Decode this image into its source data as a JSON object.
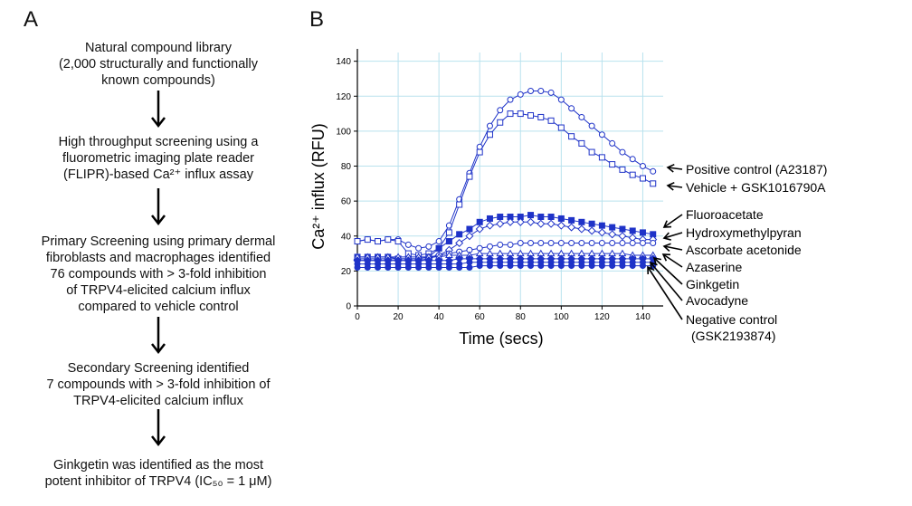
{
  "panel_a": {
    "label": "A",
    "steps": [
      {
        "lines": [
          "Natural compound library",
          "(2,000 structurally and functionally",
          "known compounds)"
        ]
      },
      {
        "lines": [
          "High throughput screening using a",
          "fluorometric imaging plate reader",
          "(FLIPR)-based Ca²⁺ influx assay"
        ]
      },
      {
        "lines": [
          "Primary Screening using primary dermal",
          "fibroblasts and macrophages identified",
          "76 compounds with > 3-fold inhibition",
          "of TRPV4-elicited calcium influx",
          "compared to vehicle control"
        ]
      },
      {
        "lines": [
          "Secondary Screening identified",
          "7 compounds with > 3-fold inhibition of",
          "TRPV4-elicited calcium influx"
        ]
      },
      {
        "lines": [
          "Ginkgetin was identified as the most",
          "potent inhibitor of TRPV4 (IC₅₀ = 1 μM)"
        ]
      }
    ]
  },
  "panel_b": {
    "label": "B"
  },
  "chart_data": {
    "type": "line",
    "xlabel": "Time (secs)",
    "ylabel": "Ca²⁺ influx (RFU)",
    "xlim": [
      0,
      150
    ],
    "ylim": [
      0,
      145
    ],
    "xticks": [
      0,
      20,
      40,
      60,
      80,
      100,
      120,
      140
    ],
    "yticks": [
      0,
      20,
      40,
      60,
      80,
      100,
      120,
      140
    ],
    "grid": true,
    "legend": "right-callouts",
    "color": "#1f33c8",
    "series": [
      {
        "name": "Positive control (A23187)",
        "marker": "open-circle",
        "x": [
          0,
          5,
          10,
          15,
          20,
          25,
          30,
          35,
          40,
          45,
          50,
          55,
          60,
          65,
          70,
          75,
          80,
          85,
          90,
          95,
          100,
          105,
          110,
          115,
          120,
          125,
          130,
          135,
          140,
          145
        ],
        "y": [
          37,
          38,
          37,
          38,
          38,
          35,
          33,
          34,
          37,
          46,
          61,
          76,
          91,
          103,
          112,
          118,
          121,
          123,
          123,
          122,
          118,
          113,
          108,
          103,
          98,
          93,
          88,
          84,
          80,
          77
        ]
      },
      {
        "name": "Vehicle + GSK1016790A",
        "marker": "open-square",
        "x": [
          0,
          5,
          10,
          15,
          20,
          25,
          30,
          35,
          40,
          45,
          50,
          55,
          60,
          65,
          70,
          75,
          80,
          85,
          90,
          95,
          100,
          105,
          110,
          115,
          120,
          125,
          130,
          135,
          140,
          145
        ],
        "y": [
          37,
          38,
          37,
          38,
          37,
          30,
          29,
          30,
          33,
          42,
          58,
          74,
          88,
          98,
          105,
          110,
          110,
          109,
          108,
          106,
          102,
          97,
          93,
          88,
          85,
          81,
          78,
          75,
          73,
          70
        ]
      },
      {
        "name": "Fluoroacetate",
        "marker": "filled-square",
        "x": [
          0,
          5,
          10,
          15,
          20,
          25,
          30,
          35,
          40,
          45,
          50,
          55,
          60,
          65,
          70,
          75,
          80,
          85,
          90,
          95,
          100,
          105,
          110,
          115,
          120,
          125,
          130,
          135,
          140,
          145
        ],
        "y": [
          28,
          28,
          28,
          28,
          27,
          27,
          27,
          28,
          33,
          37,
          41,
          44,
          48,
          50,
          51,
          51,
          51,
          52,
          51,
          51,
          50,
          49,
          48,
          47,
          46,
          45,
          44,
          43,
          42,
          41
        ]
      },
      {
        "name": "Hydroxymethylpyran",
        "marker": "open-diamond",
        "x": [
          0,
          5,
          10,
          15,
          20,
          25,
          30,
          35,
          40,
          45,
          50,
          55,
          60,
          65,
          70,
          75,
          80,
          85,
          90,
          95,
          100,
          105,
          110,
          115,
          120,
          125,
          130,
          135,
          140,
          145
        ],
        "y": [
          26,
          26,
          26,
          26,
          26,
          26,
          26,
          27,
          29,
          32,
          36,
          40,
          44,
          46,
          47,
          48,
          48,
          48,
          47,
          47,
          46,
          45,
          44,
          43,
          42,
          41,
          40,
          39,
          38,
          38
        ]
      },
      {
        "name": "Ascorbate acetonide",
        "marker": "open-circle",
        "x": [
          0,
          5,
          10,
          15,
          20,
          25,
          30,
          35,
          40,
          45,
          50,
          55,
          60,
          65,
          70,
          75,
          80,
          85,
          90,
          95,
          100,
          105,
          110,
          115,
          120,
          125,
          130,
          135,
          140,
          145
        ],
        "y": [
          27,
          27,
          27,
          27,
          27,
          27,
          27,
          28,
          29,
          30,
          31,
          32,
          33,
          34,
          35,
          35,
          36,
          36,
          36,
          36,
          36,
          36,
          36,
          36,
          36,
          36,
          36,
          36,
          36,
          36
        ]
      },
      {
        "name": "Azaserine",
        "marker": "open-triangle",
        "x": [
          0,
          5,
          10,
          15,
          20,
          25,
          30,
          35,
          40,
          45,
          50,
          55,
          60,
          65,
          70,
          75,
          80,
          85,
          90,
          95,
          100,
          105,
          110,
          115,
          120,
          125,
          130,
          135,
          140,
          145
        ],
        "y": [
          28,
          28,
          28,
          28,
          28,
          28,
          28,
          28,
          28,
          29,
          29,
          29,
          30,
          30,
          30,
          30,
          30,
          30,
          30,
          30,
          30,
          30,
          30,
          30,
          30,
          30,
          30,
          29,
          29,
          29
        ]
      },
      {
        "name": "Ginkgetin",
        "marker": "filled-diamond",
        "x": [
          0,
          5,
          10,
          15,
          20,
          25,
          30,
          35,
          40,
          45,
          50,
          55,
          60,
          65,
          70,
          75,
          80,
          85,
          90,
          95,
          100,
          105,
          110,
          115,
          120,
          125,
          130,
          135,
          140,
          145
        ],
        "y": [
          26,
          26,
          26,
          26,
          26,
          26,
          26,
          26,
          26,
          26,
          27,
          27,
          27,
          27,
          27,
          27,
          27,
          27,
          27,
          27,
          27,
          27,
          27,
          27,
          27,
          27,
          27,
          27,
          27,
          27
        ]
      },
      {
        "name": "Avocadyne",
        "marker": "filled-circle",
        "x": [
          0,
          5,
          10,
          15,
          20,
          25,
          30,
          35,
          40,
          45,
          50,
          55,
          60,
          65,
          70,
          75,
          80,
          85,
          90,
          95,
          100,
          105,
          110,
          115,
          120,
          125,
          130,
          135,
          140,
          145
        ],
        "y": [
          24,
          24,
          24,
          24,
          24,
          24,
          24,
          24,
          24,
          24,
          24,
          25,
          25,
          25,
          25,
          25,
          25,
          25,
          25,
          25,
          25,
          25,
          25,
          25,
          25,
          25,
          25,
          25,
          25,
          25
        ]
      },
      {
        "name": "Negative control (GSK2193874)",
        "marker": "filled-circle",
        "x": [
          0,
          5,
          10,
          15,
          20,
          25,
          30,
          35,
          40,
          45,
          50,
          55,
          60,
          65,
          70,
          75,
          80,
          85,
          90,
          95,
          100,
          105,
          110,
          115,
          120,
          125,
          130,
          135,
          140,
          145
        ],
        "y": [
          22,
          22,
          22,
          22,
          22,
          22,
          22,
          22,
          22,
          22,
          22,
          22,
          23,
          23,
          23,
          23,
          23,
          23,
          23,
          23,
          23,
          23,
          23,
          23,
          23,
          23,
          23,
          23,
          23,
          23
        ]
      }
    ],
    "callouts": [
      {
        "lines": [
          "Positive control (A23187)"
        ],
        "series": 0
      },
      {
        "lines": [
          "Vehicle + GSK1016790A"
        ],
        "series": 1
      },
      {
        "lines": [
          "Fluoroacetate"
        ],
        "series": 2
      },
      {
        "lines": [
          "Hydroxymethylpyran"
        ],
        "series": 3
      },
      {
        "lines": [
          "Ascorbate acetonide"
        ],
        "series": 4
      },
      {
        "lines": [
          "Azaserine"
        ],
        "series": 5
      },
      {
        "lines": [
          "Ginkgetin"
        ],
        "series": 6
      },
      {
        "lines": [
          "Avocadyne"
        ],
        "series": 7
      },
      {
        "lines": [
          "Negative control",
          "(GSK2193874)"
        ],
        "series": 8
      }
    ]
  }
}
